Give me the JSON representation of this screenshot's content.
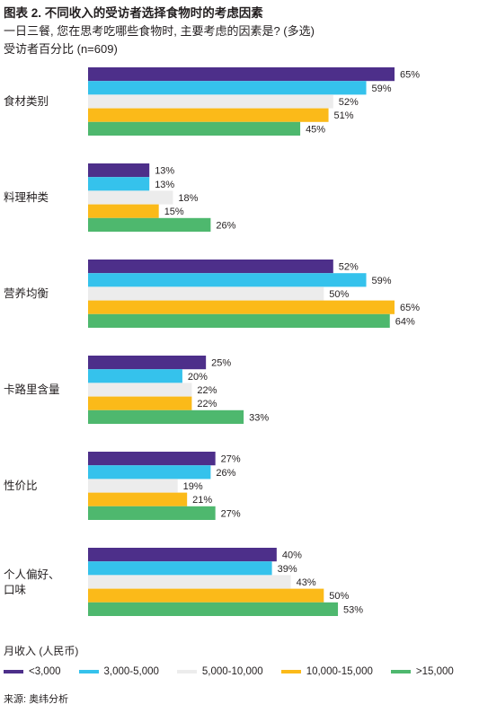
{
  "chart_data": {
    "type": "bar",
    "orientation": "horizontal",
    "title": "图表 2. 不同收入的受访者选择食物时的考虑因素",
    "subtitle": "一日三餐, 您在思考吃哪些食物时, 主要考虑的因素是? (多选)",
    "note": "受访者百分比 (n=609)",
    "legend_title": "月收入 (人民币)",
    "source": "来源: 奥纬分析",
    "categories": [
      "食材类别",
      "料理种类",
      "营养均衡",
      "卡路里含量",
      "性价比",
      "个人偏好、口味"
    ],
    "xlim": [
      0,
      70
    ],
    "grid": false,
    "legend_position": "bottom",
    "value_suffix": "%",
    "series": [
      {
        "name": "<3,000",
        "color": "#4d2f8a",
        "values": [
          65,
          13,
          52,
          25,
          27,
          40
        ]
      },
      {
        "name": "3,000-5,000",
        "color": "#35c2ec",
        "values": [
          59,
          13,
          59,
          20,
          26,
          39
        ]
      },
      {
        "name": "5,000-10,000",
        "color": "#ececec",
        "values": [
          52,
          18,
          50,
          22,
          19,
          43
        ]
      },
      {
        "name": "10,000-15,000",
        "color": "#fbba19",
        "values": [
          51,
          15,
          65,
          22,
          21,
          50
        ]
      },
      {
        "name": ">15,000",
        "color": "#4eb86e",
        "values": [
          45,
          26,
          64,
          33,
          27,
          53
        ]
      }
    ]
  }
}
